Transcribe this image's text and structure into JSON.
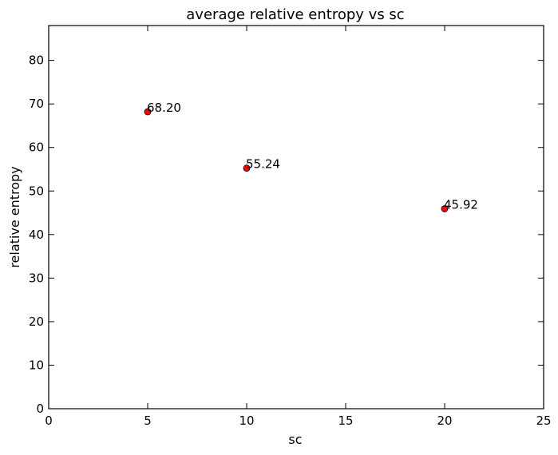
{
  "chart_data": {
    "type": "scatter",
    "title": "average relative entropy vs sc",
    "xlabel": "sc",
    "ylabel": "relative entropy",
    "xlim": [
      0,
      25
    ],
    "ylim": [
      0,
      88
    ],
    "xticks": [
      0,
      5,
      10,
      15,
      20,
      25
    ],
    "yticks": [
      0,
      10,
      20,
      30,
      40,
      50,
      60,
      70,
      80
    ],
    "grid": false,
    "marker_color": "#ff0000",
    "x": [
      5,
      10,
      20
    ],
    "y": [
      68.2,
      55.24,
      45.92
    ],
    "point_labels": [
      "68.20",
      "55.24",
      "45.92"
    ]
  }
}
